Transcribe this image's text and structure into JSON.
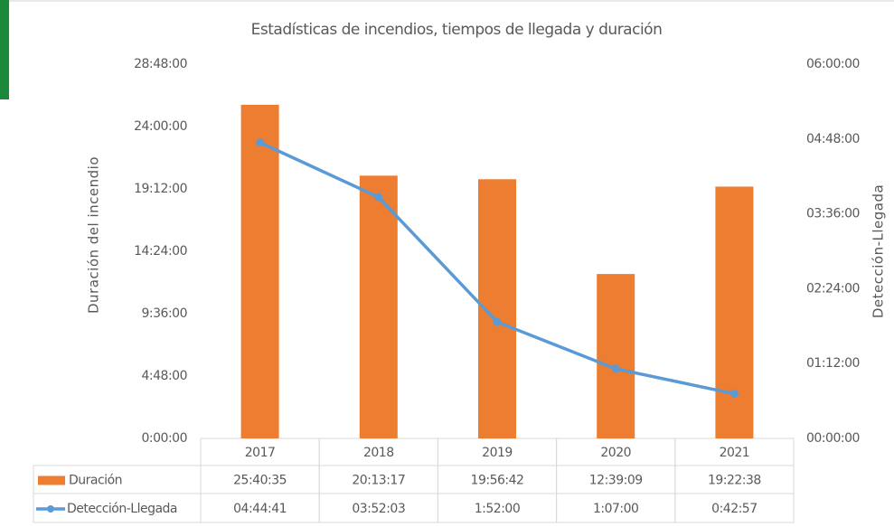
{
  "chart_data": {
    "type": "bar",
    "title": "Estadísticas de incendios, tiempos de llegada y duración",
    "ylabel": "Duración del incendio",
    "y2label": "Detección-Llegada",
    "categories": [
      "2017",
      "2018",
      "2019",
      "2020",
      "2021"
    ],
    "series": [
      {
        "name": "Duración",
        "color": "#ed7d31",
        "values": [
          25.676389,
          20.221389,
          19.945,
          12.6525,
          19.377222
        ],
        "value_labels": [
          "25:40:35",
          "20:13:17",
          "19:56:42",
          "12:39:09",
          "19:22:38"
        ]
      },
      {
        "name": "Detección-Llegada",
        "color": "#5b9bd5",
        "axis": "y2",
        "values": [
          4.744722,
          3.8675,
          1.866667,
          1.116667,
          0.715833
        ],
        "value_labels": [
          "04:44:41",
          "03:52:03",
          "1:52:00",
          "1:07:00",
          "0:42:57"
        ]
      }
    ],
    "ylim": [
      0,
      28.8
    ],
    "yticks": [
      {
        "value": 0,
        "label": "0:00:00"
      },
      {
        "value": 4.8,
        "label": "4:48:00"
      },
      {
        "value": 9.6,
        "label": "9:36:00"
      },
      {
        "value": 14.4,
        "label": "14:24:00"
      },
      {
        "value": 19.2,
        "label": "19:12:00"
      },
      {
        "value": 24,
        "label": "24:00:00"
      },
      {
        "value": 28.8,
        "label": "28:48:00"
      }
    ],
    "y2lim": [
      0,
      6
    ],
    "y2ticks": [
      {
        "value": 0,
        "label": "00:00:00"
      },
      {
        "value": 1.2,
        "label": "01:12:00"
      },
      {
        "value": 2.4,
        "label": "02:24:00"
      },
      {
        "value": 3.6,
        "label": "03:36:00"
      },
      {
        "value": 4.8,
        "label": "04:48:00"
      },
      {
        "value": 6,
        "label": "06:00:00"
      }
    ]
  }
}
